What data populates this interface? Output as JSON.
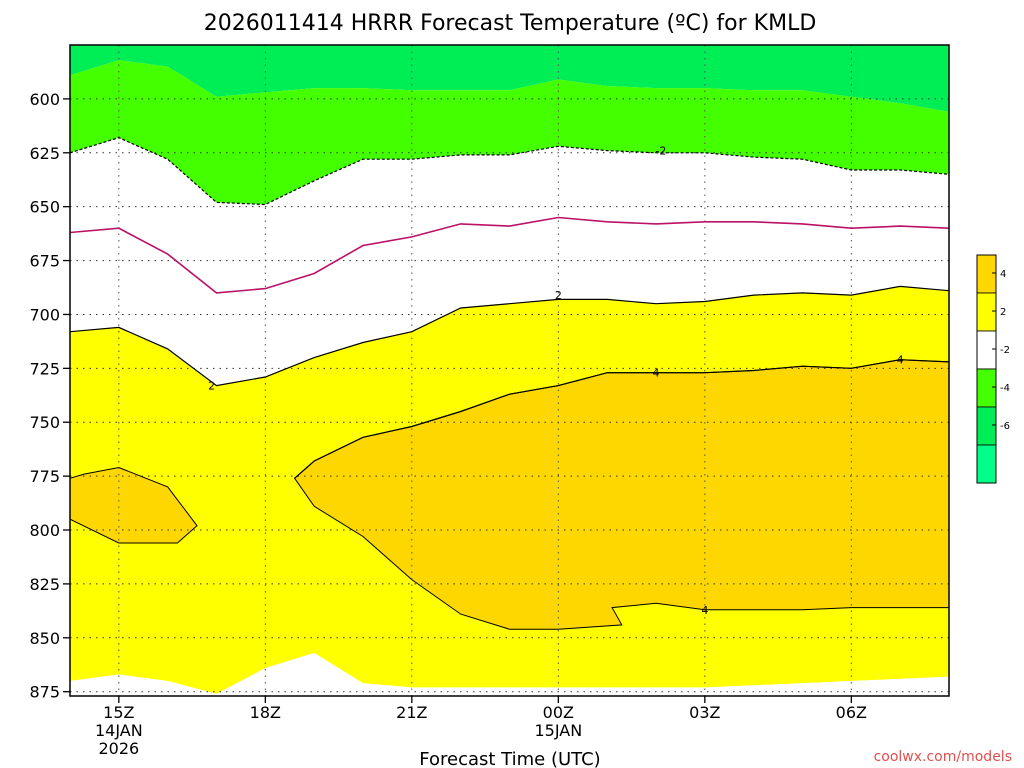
{
  "chart_data": {
    "type": "area",
    "title": "2026011414 HRRR Forecast Temperature (ºC) for KMLD",
    "xlabel": "Forecast Time (UTC)",
    "ylabel": "",
    "credit": "coolwx.com/models",
    "y_axis": {
      "ticks": [
        600,
        625,
        650,
        675,
        700,
        725,
        750,
        775,
        800,
        825,
        850,
        875
      ],
      "range": [
        575,
        877
      ],
      "inverted": true,
      "unit": "hPa"
    },
    "x_axis": {
      "range": [
        14,
        32
      ],
      "ticks": [
        {
          "x": 15,
          "lines": [
            "15Z",
            "14JAN",
            "2026"
          ]
        },
        {
          "x": 18,
          "lines": [
            "18Z"
          ]
        },
        {
          "x": 21,
          "lines": [
            "21Z"
          ]
        },
        {
          "x": 24,
          "lines": [
            "00Z",
            "15JAN"
          ]
        },
        {
          "x": 27,
          "lines": [
            "03Z"
          ]
        },
        {
          "x": 30,
          "lines": [
            "06Z"
          ]
        }
      ]
    },
    "grid": true,
    "colors": {
      "ground": "#a0522d",
      "plot_bg": "#ffffff",
      "zero_line": "#bb1166"
    },
    "colorbar": {
      "placement": "right",
      "bins": [
        {
          "range": [
            4,
            6
          ],
          "color": "#ffd700"
        },
        {
          "range": [
            2,
            4
          ],
          "color": "#ffff00"
        },
        {
          "range": [
            -2,
            2
          ],
          "color": "#ffffff"
        },
        {
          "range": [
            -4,
            -2
          ],
          "color": "#44ff00"
        },
        {
          "range": [
            -6,
            -4
          ],
          "color": "#00ee55"
        },
        {
          "range": [
            -8,
            -6
          ],
          "color": "#00ff88"
        }
      ],
      "labels": [
        "4",
        "2",
        "-2",
        "-4",
        "-6"
      ]
    },
    "series": [
      {
        "level": -4,
        "color": "#00ee55",
        "x": [
          14,
          15,
          16,
          17,
          18,
          19,
          20,
          21,
          22,
          23,
          24,
          25,
          26,
          27,
          28,
          29,
          30,
          31,
          32
        ],
        "y": [
          575,
          575,
          575,
          575,
          575,
          575,
          575,
          575,
          575,
          575,
          575,
          575,
          575,
          575,
          575,
          575,
          575,
          575,
          575
        ],
        "y2": [
          589,
          582,
          585,
          599,
          597,
          595,
          595,
          596,
          596,
          596,
          591,
          594,
          595,
          595,
          596,
          596,
          599,
          602,
          606
        ]
      },
      {
        "level": -2,
        "color": "#44ff00",
        "x": [
          14,
          15,
          16,
          17,
          18,
          19,
          20,
          21,
          22,
          23,
          24,
          25,
          26,
          27,
          28,
          29,
          30,
          31,
          32
        ],
        "y": [
          589,
          582,
          585,
          599,
          597,
          595,
          595,
          596,
          596,
          596,
          591,
          594,
          595,
          595,
          596,
          596,
          599,
          602,
          606
        ],
        "y2": [
          625,
          618,
          628,
          648,
          649,
          638,
          628,
          628,
          626,
          626,
          622,
          624,
          625,
          625,
          627,
          628,
          633,
          633,
          635
        ]
      },
      {
        "level": 2,
        "color": "#ffff00",
        "x": [
          14,
          15,
          16,
          17,
          18,
          19,
          20,
          21,
          22,
          23,
          24,
          25,
          26,
          27,
          28,
          29,
          30,
          31,
          32
        ],
        "y": [
          708,
          706,
          716,
          733,
          729,
          720,
          713,
          708,
          697,
          695,
          693,
          693,
          695,
          694,
          691,
          690,
          691,
          687,
          689
        ],
        "y2": [
          870,
          867,
          870,
          876,
          864,
          857,
          871,
          873,
          873,
          873,
          873,
          873,
          873,
          873,
          872,
          871,
          870,
          869,
          868
        ]
      },
      {
        "level": 4,
        "color": "#ffd700",
        "x": [
          14,
          14.3,
          15,
          16,
          16.6,
          16.2,
          15,
          14
        ],
        "y": [
          776,
          774,
          771,
          780,
          798,
          806,
          806,
          795
        ]
      },
      {
        "level": 4,
        "color": "#ffd700",
        "x": [
          18.6,
          19,
          20,
          21,
          22,
          23,
          24,
          25,
          26,
          27,
          28,
          29,
          30,
          31,
          32,
          32,
          31,
          30,
          29,
          28,
          27,
          26,
          25.1,
          25.3,
          24,
          23,
          22,
          21,
          20,
          19
        ],
        "y": [
          776,
          768,
          757,
          752,
          745,
          737,
          733,
          727,
          727,
          727,
          726,
          724,
          725,
          721,
          722,
          836,
          836,
          836,
          837,
          837,
          837,
          834,
          836,
          844,
          846,
          846,
          839,
          823,
          803,
          789
        ]
      }
    ],
    "contour_lines": [
      {
        "level": -2,
        "style": "dashed",
        "label": "-2",
        "x": [
          14,
          15,
          16,
          17,
          18,
          19,
          20,
          21,
          22,
          23,
          24,
          25,
          26,
          27,
          28,
          29,
          30,
          31,
          32
        ],
        "y": [
          625,
          618,
          628,
          648,
          649,
          638,
          628,
          628,
          626,
          626,
          622,
          624,
          625,
          625,
          627,
          628,
          633,
          633,
          635
        ]
      },
      {
        "level": 0,
        "style": "solid",
        "label": "",
        "x": [
          14,
          15,
          16,
          17,
          18,
          19,
          20,
          21,
          22,
          23,
          24,
          25,
          26,
          27,
          28,
          29,
          30,
          31,
          32
        ],
        "y": [
          662,
          660,
          672,
          690,
          688,
          681,
          668,
          664,
          658,
          659,
          655,
          657,
          658,
          657,
          657,
          658,
          660,
          659,
          660
        ]
      },
      {
        "level": 2,
        "style": "solid",
        "label": "2",
        "x": [
          14,
          15,
          16,
          17,
          18,
          19,
          20,
          21,
          22,
          23,
          24,
          25,
          26,
          27,
          28,
          29,
          30,
          31,
          32
        ],
        "y": [
          708,
          706,
          716,
          733,
          729,
          720,
          713,
          708,
          697,
          695,
          693,
          693,
          695,
          694,
          691,
          690,
          691,
          687,
          689
        ]
      },
      {
        "level": 4,
        "style": "solid",
        "label": "4",
        "x": [
          18.6,
          19,
          20,
          21,
          22,
          23,
          24,
          25,
          26,
          27,
          28,
          29,
          30,
          31,
          32
        ],
        "y": [
          776,
          768,
          757,
          752,
          745,
          737,
          733,
          727,
          727,
          727,
          726,
          724,
          725,
          721,
          722
        ]
      }
    ]
  }
}
